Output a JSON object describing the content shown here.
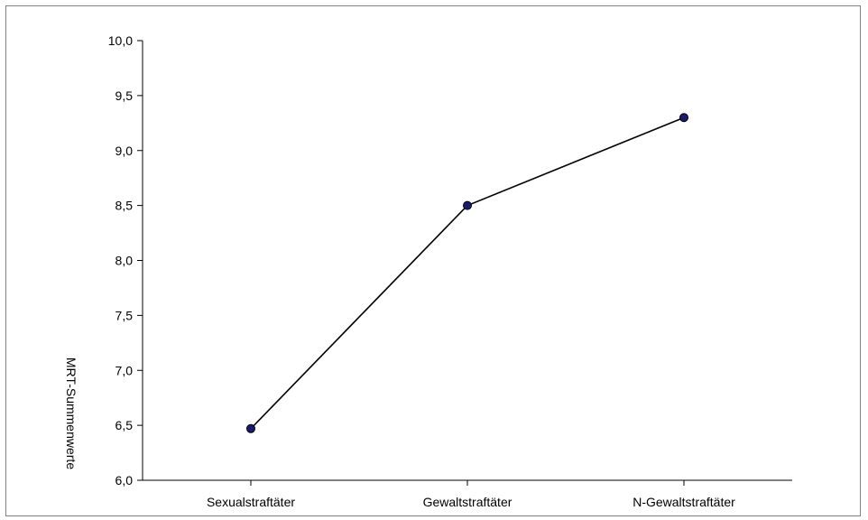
{
  "chart_data": {
    "type": "line",
    "title": "",
    "xlabel": "",
    "ylabel": "MRT-Summenwerte",
    "categories": [
      "Sexualstraftäter",
      "Gewaltstraftäter",
      "N-Gewaltstraftäter"
    ],
    "series": [
      {
        "values": [
          6.47,
          8.5,
          9.3
        ]
      }
    ],
    "ylim": [
      6.0,
      10.0
    ],
    "yticks": [
      6.0,
      6.5,
      7.0,
      7.5,
      8.0,
      8.5,
      9.0,
      9.5,
      10.0
    ],
    "ytick_labels": [
      "6,0",
      "6,5",
      "7,0",
      "7,5",
      "8,0",
      "8,5",
      "9,0",
      "9,5",
      "10,0"
    ],
    "grid": false,
    "legend": "none",
    "colors": {
      "line": "#000000",
      "marker": "#1a1a6e",
      "frame": "#808080"
    }
  }
}
